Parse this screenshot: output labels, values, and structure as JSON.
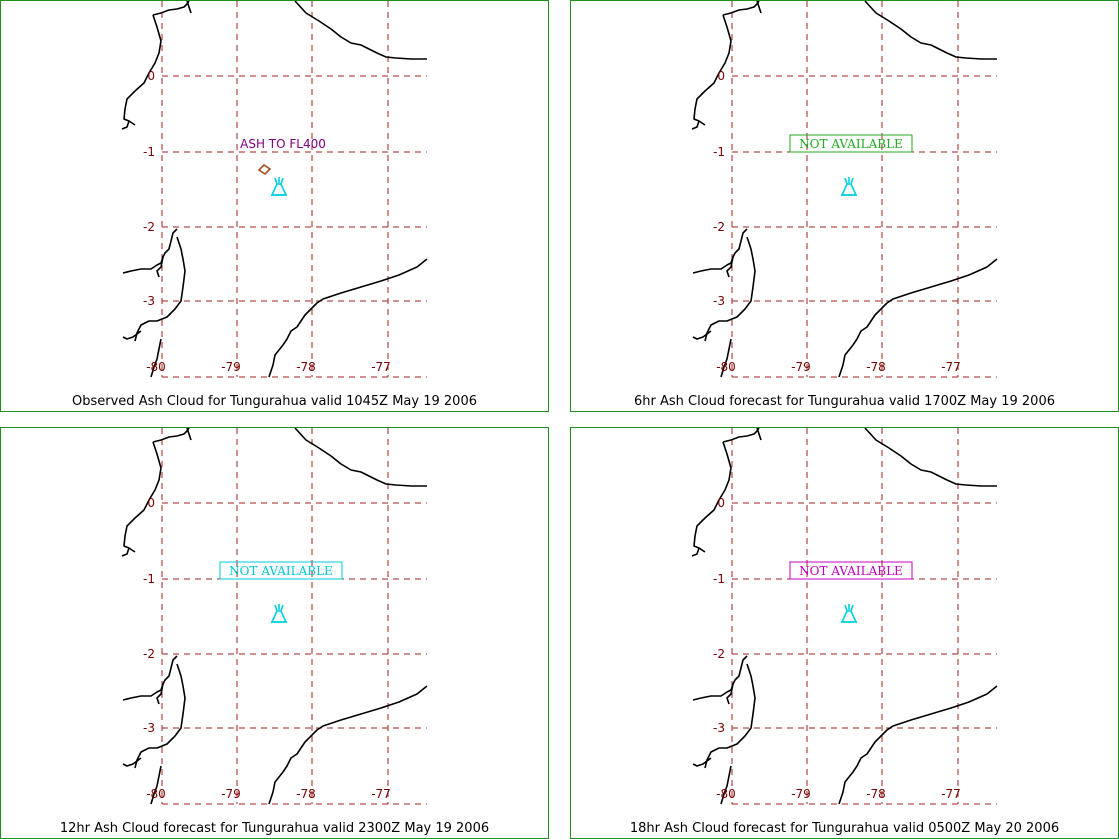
{
  "panels": [
    {
      "caption": "Observed Ash Cloud for Tungurahua valid 1045Z May 19 2006",
      "annotation": {
        "type": "ash",
        "text": "ASH TO FL400",
        "color": "#800080"
      },
      "ash_polygon_color": "#a05020"
    },
    {
      "caption": "6hr Ash Cloud forecast for Tungurahua valid 1700Z May 19 2006",
      "annotation": {
        "type": "not-available",
        "text": "NOT AVAILABLE",
        "color": "#22aa22"
      }
    },
    {
      "caption": "12hr Ash Cloud forecast for Tungurahua valid 2300Z May 19 2006",
      "annotation": {
        "type": "not-available",
        "text": "NOT AVAILABLE",
        "color": "#00c8d8"
      }
    },
    {
      "caption": "18hr Ash Cloud forecast for Tungurahua valid 0500Z May 20 2006",
      "annotation": {
        "type": "not-available",
        "text": "NOT AVAILABLE",
        "color": "#c000c0"
      }
    }
  ],
  "lat_labels": [
    "0",
    "-1",
    "-2",
    "-3"
  ],
  "lon_labels": [
    "-80",
    "-79",
    "-78",
    "-77"
  ],
  "colors": {
    "border": "#1f8f1f",
    "grid": "#a02020",
    "labels": "#7a0000",
    "volcano": "#00d0e0",
    "coastline": "#000000"
  },
  "volcano_icon": "volcano-icon"
}
